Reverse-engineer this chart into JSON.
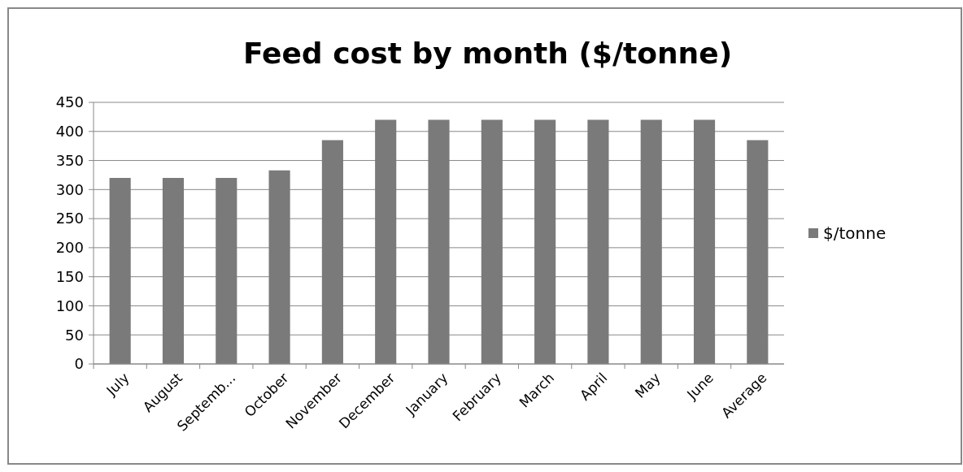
{
  "chart_data": {
    "type": "bar",
    "title": "Feed cost by month ($/tonne)",
    "categories": [
      "July",
      "August",
      "Septemb...",
      "October",
      "November",
      "December",
      "January",
      "February",
      "March",
      "April",
      "May",
      "June",
      "Average"
    ],
    "series": [
      {
        "name": "$/tonne",
        "color": "#7a7a7a",
        "values": [
          320,
          320,
          320,
          333,
          385,
          420,
          420,
          420,
          420,
          420,
          420,
          420,
          385
        ]
      }
    ],
    "ylim": [
      0,
      450
    ],
    "yticks": [
      0,
      50,
      100,
      150,
      200,
      250,
      300,
      350,
      400,
      450
    ],
    "grid": "y",
    "legend": "right"
  }
}
